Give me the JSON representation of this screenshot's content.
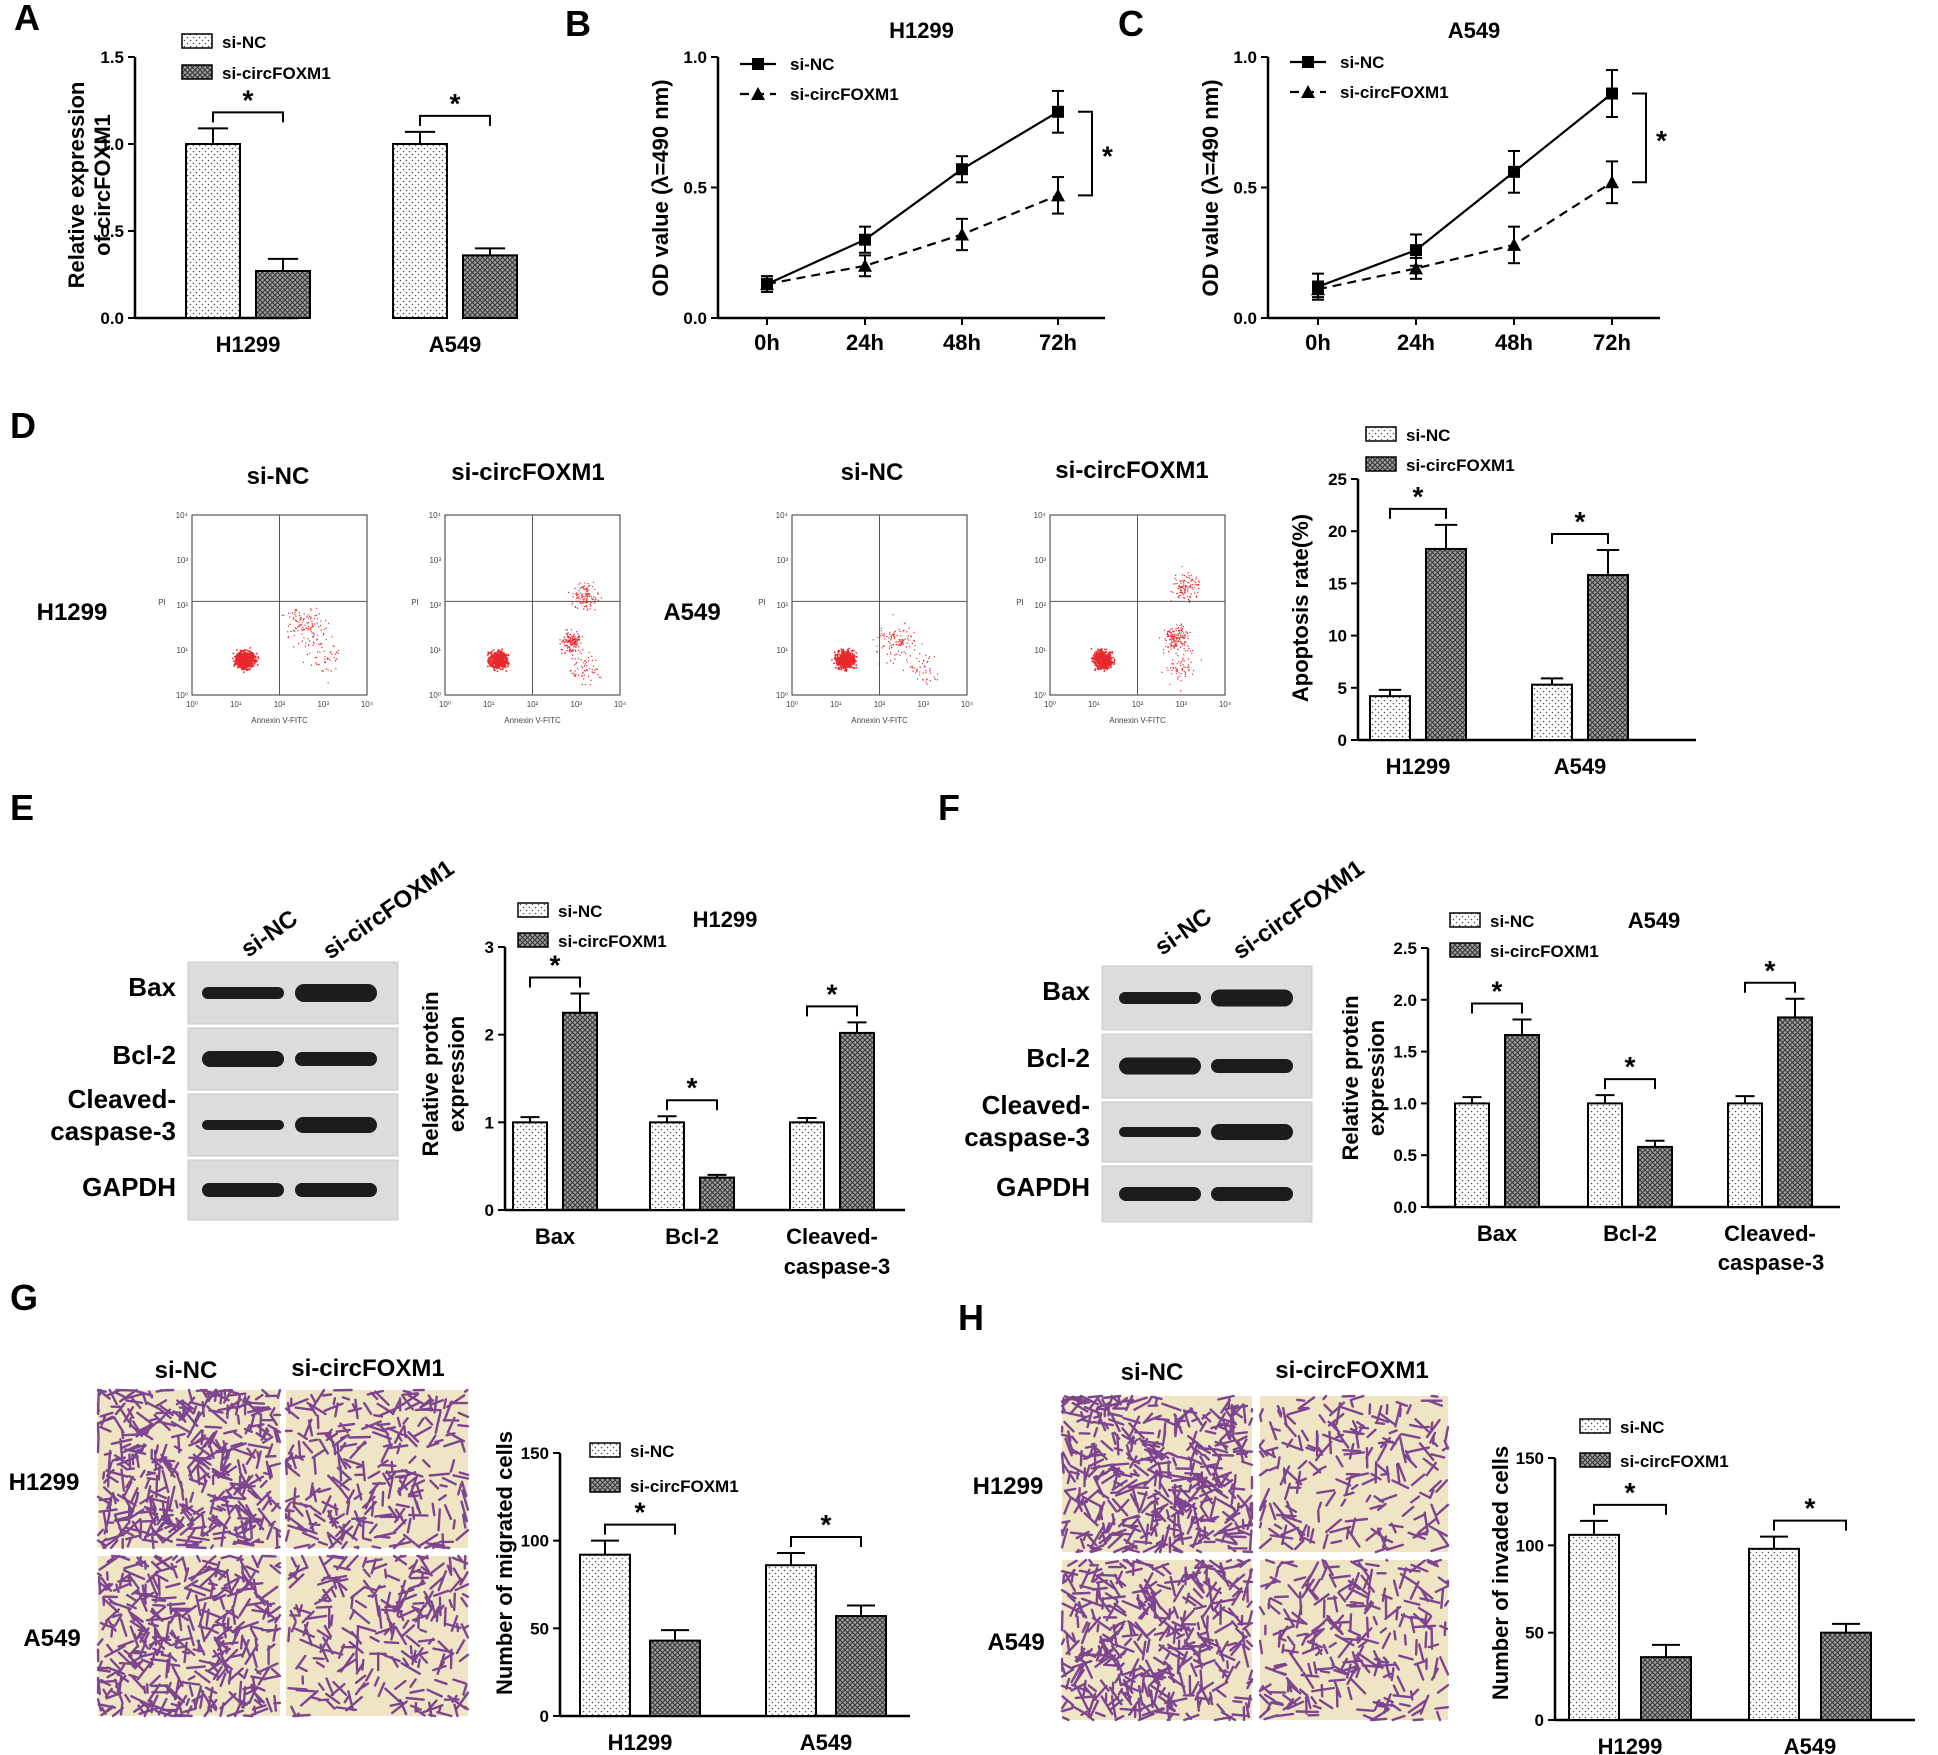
{
  "colors": {
    "bar_fill_nc": "#ffffff",
    "bar_fill_si": "#bdbdbd",
    "facs_dots": "#e8282c",
    "blot_band": "#1c1c1c",
    "blot_bg": "#dcdcdc",
    "stain_purple": "#6a2a86",
    "stain_bg": "#efe4c4"
  },
  "legend": {
    "nc": "si-NC",
    "si": "si-circFOXM1"
  },
  "group_labels": {
    "nc": "si-NC",
    "si": "si-circFOXM1"
  },
  "panels": {
    "A": {
      "letter": "A",
      "ylabel_line1": "Relative expression",
      "ylabel_line2": "of circFOXM1",
      "sig": "*"
    },
    "B": {
      "letter": "B",
      "title": "H1299",
      "ylabel": "OD value (λ=490 nm)",
      "sig": "*"
    },
    "C": {
      "letter": "C",
      "title": "A549",
      "ylabel": "OD value (λ=490 nm)",
      "sig": "*"
    },
    "D": {
      "letter": "D",
      "row_labels": [
        "H1299",
        "A549"
      ],
      "facs_xlabel": "Annexin V-FITC",
      "facs_ylabel": "PI",
      "facs_ticks": [
        "10⁰",
        "10¹",
        "10²",
        "10³",
        "10⁴"
      ],
      "ylabel": "Apoptosis rate(%)",
      "sig": "*"
    },
    "E": {
      "letter": "E",
      "title": "H1299",
      "blot_rows": [
        "Bax",
        "Bcl-2",
        "Cleaved-",
        "caspase-3",
        "GAPDH"
      ],
      "ylabel_line1": "Relative protein",
      "ylabel_line2": "expression",
      "cat3_line2": "caspase-3",
      "sig": "*"
    },
    "F": {
      "letter": "F",
      "title": "A549",
      "blot_rows": [
        "Bax",
        "Bcl-2",
        "Cleaved-",
        "caspase-3",
        "GAPDH"
      ],
      "ylabel_line1": "Relative protein",
      "ylabel_line2": "expression",
      "cat3_line2": "caspase-3",
      "sig": "*"
    },
    "G": {
      "letter": "G",
      "row_labels": [
        "H1299",
        "A549"
      ],
      "ylabel": "Number of migrated cells",
      "sig": "*"
    },
    "H": {
      "letter": "H",
      "row_labels": [
        "H1299",
        "A549"
      ],
      "ylabel": "Number of invaded cells",
      "sig": "*"
    }
  },
  "chart_data": [
    {
      "panel": "A",
      "type": "bar",
      "categories": [
        "H1299",
        "A549"
      ],
      "series": [
        {
          "name": "si-NC",
          "values": [
            1.0,
            1.0
          ],
          "errors": [
            0.09,
            0.07
          ]
        },
        {
          "name": "si-circFOXM1",
          "values": [
            0.27,
            0.36
          ],
          "errors": [
            0.07,
            0.04
          ]
        }
      ],
      "ylim": [
        0,
        1.5
      ],
      "yticks": [
        "0.0",
        "0.5",
        "1.0",
        "1.5"
      ],
      "legend": "top-left"
    },
    {
      "panel": "B",
      "type": "line",
      "title": "H1299",
      "x": [
        "0h",
        "24h",
        "48h",
        "72h"
      ],
      "series": [
        {
          "name": "si-NC",
          "values": [
            0.13,
            0.3,
            0.57,
            0.79
          ],
          "errors": [
            0.03,
            0.05,
            0.05,
            0.08
          ]
        },
        {
          "name": "si-circFOXM1",
          "values": [
            0.13,
            0.2,
            0.32,
            0.47
          ],
          "errors": [
            0.03,
            0.04,
            0.06,
            0.07
          ]
        }
      ],
      "ylim": [
        0,
        1.0
      ],
      "yticks": [
        "0.0",
        "0.5",
        "1.0"
      ],
      "legend": "top-left"
    },
    {
      "panel": "C",
      "type": "line",
      "title": "A549",
      "x": [
        "0h",
        "24h",
        "48h",
        "72h"
      ],
      "series": [
        {
          "name": "si-NC",
          "values": [
            0.12,
            0.26,
            0.56,
            0.86
          ],
          "errors": [
            0.05,
            0.06,
            0.08,
            0.09
          ]
        },
        {
          "name": "si-circFOXM1",
          "values": [
            0.11,
            0.19,
            0.28,
            0.52
          ],
          "errors": [
            0.03,
            0.04,
            0.07,
            0.08
          ]
        }
      ],
      "ylim": [
        0,
        1.0
      ],
      "yticks": [
        "0.0",
        "0.5",
        "1.0"
      ],
      "legend": "top-left"
    },
    {
      "panel": "D",
      "type": "bar",
      "categories": [
        "H1299",
        "A549"
      ],
      "series": [
        {
          "name": "si-NC",
          "values": [
            4.2,
            5.3
          ],
          "errors": [
            0.6,
            0.6
          ]
        },
        {
          "name": "si-circFOXM1",
          "values": [
            18.3,
            15.8
          ],
          "errors": [
            2.3,
            2.4
          ]
        }
      ],
      "ylim": [
        0,
        25
      ],
      "yticks": [
        "0",
        "5",
        "10",
        "15",
        "20",
        "25"
      ],
      "legend": "top-left"
    },
    {
      "panel": "E",
      "type": "bar",
      "title": "H1299",
      "categories": [
        "Bax",
        "Bcl-2",
        "Cleaved-"
      ],
      "series": [
        {
          "name": "si-NC",
          "values": [
            1.0,
            1.0,
            1.0
          ],
          "errors": [
            0.06,
            0.07,
            0.05
          ]
        },
        {
          "name": "si-circFOXM1",
          "values": [
            2.25,
            0.37,
            2.02
          ],
          "errors": [
            0.22,
            0.03,
            0.12
          ]
        }
      ],
      "ylim": [
        0,
        3
      ],
      "yticks": [
        "0",
        "1",
        "2",
        "3"
      ],
      "legend": "top-left"
    },
    {
      "panel": "F",
      "type": "bar",
      "title": "A549",
      "categories": [
        "Bax",
        "Bcl-2",
        "Cleaved-"
      ],
      "series": [
        {
          "name": "si-NC",
          "values": [
            1.0,
            1.0,
            1.0
          ],
          "errors": [
            0.06,
            0.08,
            0.07
          ]
        },
        {
          "name": "si-circFOXM1",
          "values": [
            1.66,
            0.58,
            1.83
          ],
          "errors": [
            0.15,
            0.06,
            0.18
          ]
        }
      ],
      "ylim": [
        0,
        2.5
      ],
      "yticks": [
        "0.0",
        "0.5",
        "1.0",
        "1.5",
        "2.0",
        "2.5"
      ],
      "legend": "top-left"
    },
    {
      "panel": "G",
      "type": "bar",
      "categories": [
        "H1299",
        "A549"
      ],
      "series": [
        {
          "name": "si-NC",
          "values": [
            92,
            86
          ],
          "errors": [
            8,
            7
          ]
        },
        {
          "name": "si-circFOXM1",
          "values": [
            43,
            57
          ],
          "errors": [
            6,
            6
          ]
        }
      ],
      "ylim": [
        0,
        150
      ],
      "yticks": [
        "0",
        "50",
        "100",
        "150"
      ],
      "legend": "top-left"
    },
    {
      "panel": "H",
      "type": "bar",
      "categories": [
        "H1299",
        "A549"
      ],
      "series": [
        {
          "name": "si-NC",
          "values": [
            106,
            98
          ],
          "errors": [
            8,
            7
          ]
        },
        {
          "name": "si-circFOXM1",
          "values": [
            36,
            50
          ],
          "errors": [
            7,
            5
          ]
        }
      ],
      "ylim": [
        0,
        150
      ],
      "yticks": [
        "0",
        "50",
        "100",
        "150"
      ],
      "legend": "top-left"
    }
  ]
}
